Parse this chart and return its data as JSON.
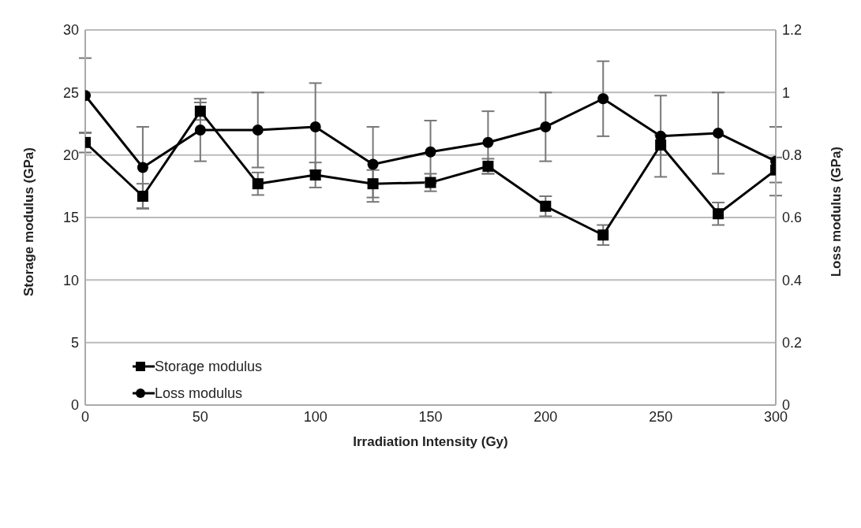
{
  "chart_data": {
    "type": "line",
    "xlabel": "Irradiation Intensity (Gy)",
    "ylabel": "Storage modulus (GPa)",
    "y2label": "Loss modulus (GPa)",
    "x": [
      0,
      25,
      50,
      75,
      100,
      125,
      150,
      175,
      200,
      225,
      250,
      275,
      300
    ],
    "series": [
      {
        "name": "Storage modulus",
        "color": "#000000",
        "marker": "square",
        "values": [
          21.0,
          16.7,
          23.5,
          17.7,
          18.4,
          17.7,
          17.8,
          19.1,
          15.9,
          13.6,
          20.8,
          15.3,
          18.8
        ],
        "errors": [
          0.8,
          1.0,
          0.7,
          0.9,
          1.0,
          1.1,
          0.7,
          0.6,
          0.8,
          0.8,
          0.8,
          0.9,
          1.0
        ]
      },
      {
        "name": "Loss modulus",
        "color": "#000000",
        "marker": "circle",
        "axis": "y2",
        "values": [
          0.99,
          0.76,
          0.88,
          0.88,
          0.89,
          0.77,
          0.81,
          0.84,
          0.89,
          0.98,
          0.86,
          0.87,
          0.78
        ],
        "errors": [
          0.12,
          0.13,
          0.1,
          0.12,
          0.14,
          0.12,
          0.1,
          0.1,
          0.11,
          0.12,
          0.13,
          0.13,
          0.11
        ]
      }
    ],
    "xlim": [
      0,
      300
    ],
    "xticks": [
      0,
      50,
      100,
      150,
      200,
      250,
      300
    ],
    "ylim": [
      0,
      30
    ],
    "yticks": [
      0,
      5,
      10,
      15,
      20,
      25,
      30
    ],
    "y2lim": [
      0,
      1.2
    ],
    "y2ticks": [
      0,
      0.2,
      0.4,
      0.6,
      0.8,
      1,
      1.2
    ],
    "grid": "y",
    "legend": "bottom left",
    "line_style": "solid"
  }
}
